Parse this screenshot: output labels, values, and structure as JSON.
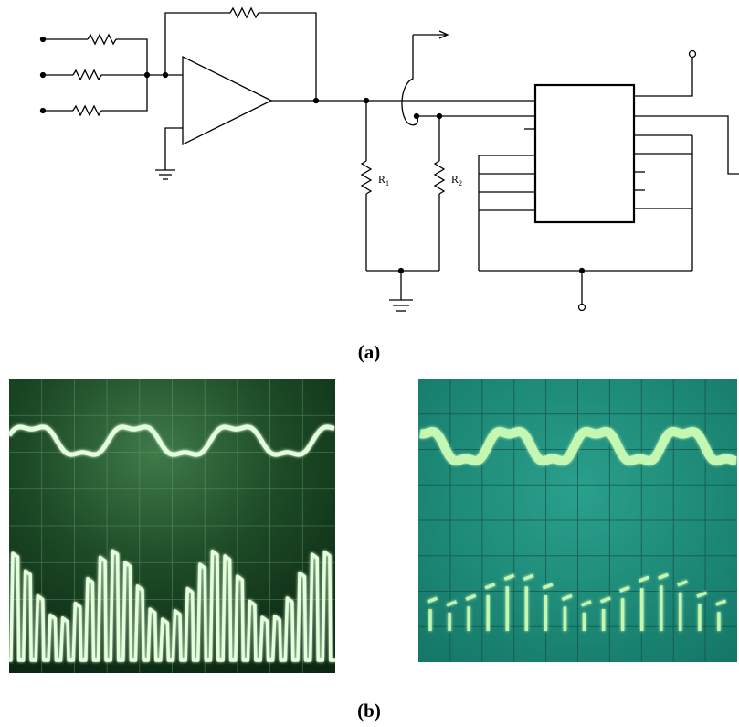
{
  "part_a": {
    "caption": "(a)",
    "resistor_labels": {
      "r1": "R",
      "r1_sub": "1",
      "r2": "R",
      "r2_sub": "2"
    }
  },
  "part_b": {
    "caption": "(b)",
    "left_scope": {
      "screen_color": "#17401f",
      "trace_color": "#d8ffd0",
      "grid_divisions": [
        10,
        8
      ]
    },
    "right_scope": {
      "screen_color": "#1f8b7a",
      "trace_color": "#b8f5a8",
      "grid_divisions": [
        10,
        8
      ]
    }
  }
}
